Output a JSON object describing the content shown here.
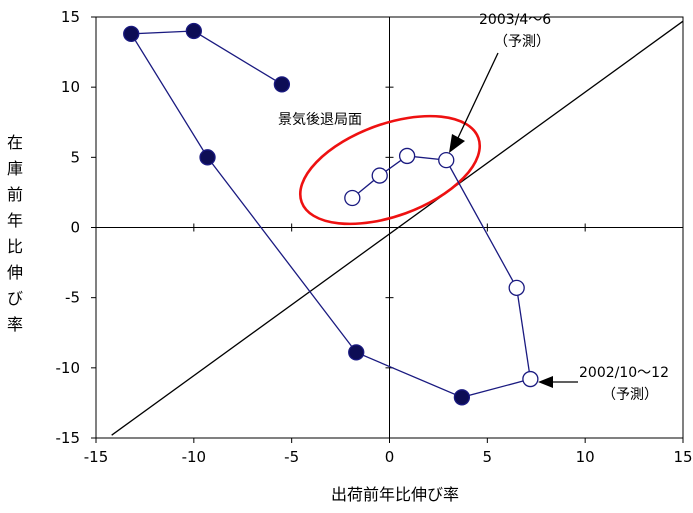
{
  "chart_data": {
    "type": "scatter",
    "xlabel": "出荷前年比伸び率",
    "ylabel": "在庫前年比伸び率",
    "xlim": [
      -15,
      15
    ],
    "ylim": [
      -15,
      15
    ],
    "xticks": [
      -15,
      -10,
      -5,
      0,
      5,
      10,
      15
    ],
    "yticks": [
      15,
      10,
      5,
      0,
      -5,
      -10,
      -15
    ],
    "path": [
      {
        "x": -5.5,
        "y": 10.2,
        "filled": true
      },
      {
        "x": -10.0,
        "y": 14.0,
        "filled": true
      },
      {
        "x": -13.2,
        "y": 13.8,
        "filled": true
      },
      {
        "x": -9.3,
        "y": 5.0,
        "filled": true
      },
      {
        "x": -1.7,
        "y": -8.9,
        "filled": true
      },
      {
        "x": 3.7,
        "y": -12.1,
        "filled": true
      },
      {
        "x": 7.2,
        "y": -10.8,
        "filled": false
      },
      {
        "x": 6.5,
        "y": -4.3,
        "filled": false
      },
      {
        "x": 2.9,
        "y": 4.8,
        "filled": false
      },
      {
        "x": 0.9,
        "y": 5.1,
        "filled": false
      },
      {
        "x": -0.5,
        "y": 3.7,
        "filled": false
      },
      {
        "x": -1.9,
        "y": 2.1,
        "filled": false
      }
    ],
    "reference_line": {
      "from": [
        -14.2,
        -14.8
      ],
      "to": [
        15,
        14.7
      ]
    },
    "annotations": {
      "recession": "景気後退局面",
      "top_label_line1": "2003/4～6",
      "top_label_line2": "（予測）",
      "bottom_label_line1": "2002/10～12",
      "bottom_label_line2": "（予測）"
    },
    "colors": {
      "series": "#1a1a80",
      "marker_fill": "#0d0d55",
      "ellipse": "#ee1111",
      "axis": "#000000"
    }
  }
}
